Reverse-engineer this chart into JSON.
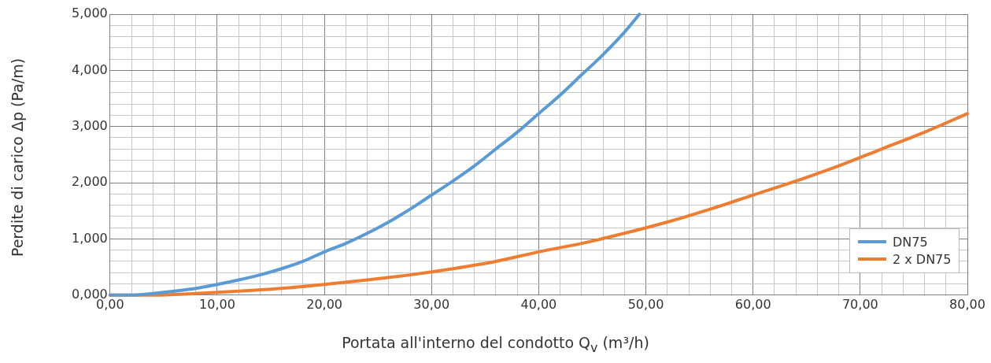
{
  "chart_data": {
    "type": "line",
    "xlabel": "Portata all'interno del condotto Q$_{v}$ (m³/h)",
    "ylabel": "Perdite di carico Δp (Pa/m)",
    "xlim": [
      0,
      80
    ],
    "xticks": [
      {
        "value": 0,
        "label": "0,00"
      },
      {
        "value": 2,
        "label": null
      },
      {
        "value": 4,
        "label": null
      },
      {
        "value": 6,
        "label": null
      },
      {
        "value": 8,
        "label": null
      },
      {
        "value": 10,
        "label": "10,00"
      },
      {
        "value": 12,
        "label": null
      },
      {
        "value": 14,
        "label": null
      },
      {
        "value": 16,
        "label": null
      },
      {
        "value": 18,
        "label": null
      },
      {
        "value": 20,
        "label": "20,00"
      },
      {
        "value": 22,
        "label": null
      },
      {
        "value": 24,
        "label": null
      },
      {
        "value": 26,
        "label": null
      },
      {
        "value": 28,
        "label": null
      },
      {
        "value": 30,
        "label": "30,00"
      },
      {
        "value": 32,
        "label": null
      },
      {
        "value": 34,
        "label": null
      },
      {
        "value": 36,
        "label": null
      },
      {
        "value": 38,
        "label": null
      },
      {
        "value": 40,
        "label": "40,00"
      },
      {
        "value": 42,
        "label": null
      },
      {
        "value": 44,
        "label": null
      },
      {
        "value": 46,
        "label": null
      },
      {
        "value": 48,
        "label": null
      },
      {
        "value": 50,
        "label": "50,00"
      },
      {
        "value": 52,
        "label": null
      },
      {
        "value": 54,
        "label": null
      },
      {
        "value": 56,
        "label": null
      },
      {
        "value": 58,
        "label": null
      },
      {
        "value": 60,
        "label": "60,00"
      },
      {
        "value": 62,
        "label": null
      },
      {
        "value": 64,
        "label": null
      },
      {
        "value": 66,
        "label": null
      },
      {
        "value": 68,
        "label": null
      },
      {
        "value": 70,
        "label": "70,00"
      },
      {
        "value": 72,
        "label": null
      },
      {
        "value": 74,
        "label": null
      },
      {
        "value": 76,
        "label": null
      },
      {
        "value": 78,
        "label": null
      },
      {
        "value": 80,
        "label": "80,00"
      }
    ],
    "ylim": [
      0,
      5
    ],
    "yticks": [
      {
        "value": 0,
        "label": "0,000"
      },
      {
        "value": 0.2,
        "label": null
      },
      {
        "value": 0.4,
        "label": null
      },
      {
        "value": 0.6,
        "label": null
      },
      {
        "value": 0.8,
        "label": null
      },
      {
        "value": 1,
        "label": "1,000"
      },
      {
        "value": 1.2,
        "label": null
      },
      {
        "value": 1.4,
        "label": null
      },
      {
        "value": 1.6,
        "label": null
      },
      {
        "value": 1.8,
        "label": null
      },
      {
        "value": 2,
        "label": "2,000"
      },
      {
        "value": 2.2,
        "label": null
      },
      {
        "value": 2.4,
        "label": null
      },
      {
        "value": 2.6,
        "label": null
      },
      {
        "value": 2.8,
        "label": null
      },
      {
        "value": 3,
        "label": "3,000"
      },
      {
        "value": 3.2,
        "label": null
      },
      {
        "value": 3.4,
        "label": null
      },
      {
        "value": 3.6,
        "label": null
      },
      {
        "value": 3.8,
        "label": null
      },
      {
        "value": 4,
        "label": "4,000"
      },
      {
        "value": 4.2,
        "label": null
      },
      {
        "value": 4.4,
        "label": null
      },
      {
        "value": 4.6,
        "label": null
      },
      {
        "value": 4.8,
        "label": null
      },
      {
        "value": 5,
        "label": "5,000"
      }
    ],
    "grid": true,
    "legend": "bottom right",
    "marker": "none",
    "line_style": "solid",
    "series": [
      {
        "name": "DN75",
        "color": "#5b9bd5",
        "x": [
          0,
          2,
          4,
          6,
          8,
          10,
          12,
          14,
          16,
          18,
          20,
          22,
          24,
          26,
          28,
          30,
          32,
          34,
          36,
          38,
          40,
          42,
          44,
          46,
          48,
          49.4
        ],
        "values": [
          0,
          0,
          0.03,
          0.07,
          0.12,
          0.19,
          0.27,
          0.36,
          0.47,
          0.6,
          0.77,
          0.92,
          1.1,
          1.3,
          1.53,
          1.78,
          2.03,
          2.3,
          2.6,
          2.9,
          3.23,
          3.56,
          3.92,
          4.28,
          4.68,
          5
        ]
      },
      {
        "name": "2 x DN75",
        "color": "#ed7d31",
        "x": [
          0,
          4,
          8,
          12,
          16,
          20,
          24,
          28,
          32,
          36,
          40,
          44,
          48,
          52,
          56,
          60,
          64,
          68,
          72,
          76,
          80
        ],
        "values": [
          0,
          0,
          0.03,
          0.07,
          0.12,
          0.19,
          0.27,
          0.36,
          0.47,
          0.6,
          0.77,
          0.92,
          1.1,
          1.3,
          1.53,
          1.78,
          2.03,
          2.3,
          2.6,
          2.9,
          3.23
        ]
      }
    ]
  }
}
